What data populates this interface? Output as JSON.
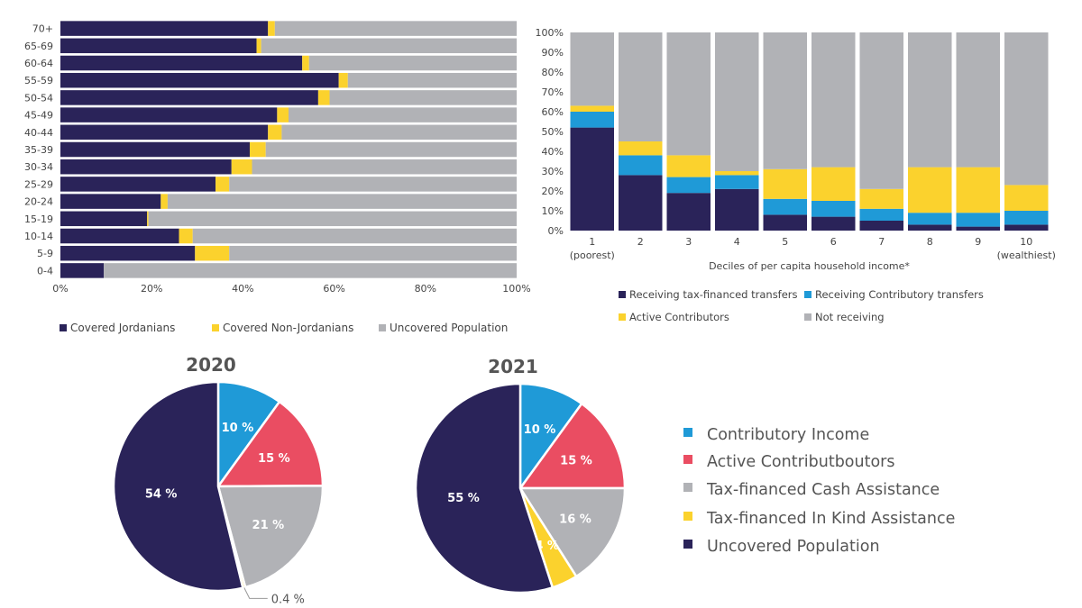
{
  "colors": {
    "navy": "#2a2359",
    "yellow": "#fbd22d",
    "gray": "#b1b2b6",
    "blue": "#1f9ad7",
    "red": "#ea4d62",
    "pieGray": "#b1b2b6"
  },
  "chart_data": [
    {
      "type": "bar",
      "orientation": "horizontal",
      "stacked": true,
      "categories": [
        "70+",
        "65-69",
        "60-64",
        "55-59",
        "50-54",
        "45-49",
        "40-44",
        "35-39",
        "30-34",
        "25-29",
        "20-24",
        "15-19",
        "10-14",
        "5-9",
        "0-4"
      ],
      "series": [
        {
          "name": "Covered Jordanians",
          "color": "navy",
          "values": [
            45.5,
            43,
            53,
            61,
            56.5,
            47.5,
            45.5,
            41.5,
            37.5,
            34,
            22,
            19,
            26,
            29.5,
            9.5
          ]
        },
        {
          "name": "Covered Non-Jordanians",
          "color": "yellow",
          "values": [
            1.5,
            1,
            1.5,
            2,
            2.5,
            2.5,
            3,
            3.5,
            4.5,
            3,
            1.5,
            0.3,
            3,
            7.5,
            0
          ]
        },
        {
          "name": "Uncovered Population",
          "color": "gray",
          "values": [
            53,
            56,
            45.5,
            37,
            41,
            50,
            51.5,
            55,
            58,
            63,
            76.5,
            80.7,
            71,
            63,
            90.5
          ]
        }
      ],
      "xticks": [
        "0%",
        "20%",
        "40%",
        "60%",
        "80%",
        "100%"
      ],
      "xlim": [
        0,
        100
      ],
      "legend": [
        "Covered Jordanians",
        "Covered Non-Jordanians",
        "Uncovered Population"
      ],
      "legend_position": "bottom"
    },
    {
      "type": "bar",
      "stacked": true,
      "categories": [
        "1",
        "2",
        "3",
        "4",
        "5",
        "6",
        "7",
        "8",
        "9",
        "10"
      ],
      "category_sublabels": {
        "0": "(poorest)",
        "9": "(wealthiest)"
      },
      "xlabel": "Deciles of per capita household income*",
      "yticks": [
        "0%",
        "10%",
        "20%",
        "30%",
        "40%",
        "50%",
        "60%",
        "70%",
        "80%",
        "90%",
        "100%"
      ],
      "ylim": [
        0,
        100
      ],
      "series": [
        {
          "name": "Receiving tax-financed transfers",
          "color": "navy",
          "values": [
            52,
            28,
            19,
            21,
            8,
            7,
            5,
            3,
            2,
            3
          ]
        },
        {
          "name": "Receiving Contributory transfers",
          "color": "blue",
          "values": [
            8,
            10,
            8,
            7,
            8,
            8,
            6,
            6,
            7,
            7
          ]
        },
        {
          "name": "Active Contributors",
          "color": "yellow",
          "values": [
            3,
            7,
            11,
            2,
            15,
            17,
            10,
            23,
            23,
            13
          ]
        },
        {
          "name": "Not receiving",
          "color": "gray",
          "values": [
            37,
            55,
            62,
            70,
            69,
            68,
            79,
            68,
            68,
            77
          ]
        }
      ],
      "legend": [
        "Receiving tax-financed transfers",
        "Receiving Contributory transfers",
        "Active Contributors",
        "Not receiving"
      ],
      "legend_position": "bottom"
    },
    {
      "type": "pie",
      "title": "2020",
      "slices": [
        {
          "name": "Contributory Income",
          "value": 10,
          "label": "10 %",
          "color": "blue"
        },
        {
          "name": "Active Contributboutors",
          "value": 15,
          "label": "15 %",
          "color": "red"
        },
        {
          "name": "Tax-financed Cash Assistance",
          "value": 21,
          "label": "21 %",
          "color": "pieGray"
        },
        {
          "name": "Tax-financed In Kind Assistance",
          "value": 0.4,
          "label": "0.4 %",
          "color": "yellow"
        },
        {
          "name": "Uncovered Population",
          "value": 54,
          "label": "54 %",
          "color": "navy"
        }
      ]
    },
    {
      "type": "pie",
      "title": "2021",
      "slices": [
        {
          "name": "Contributory Income",
          "value": 10,
          "label": "10 %",
          "color": "blue"
        },
        {
          "name": "Active Contributboutors",
          "value": 15,
          "label": "15 %",
          "color": "red"
        },
        {
          "name": "Tax-financed Cash Assistance",
          "value": 16,
          "label": "16 %",
          "color": "pieGray"
        },
        {
          "name": "Tax-financed In Kind Assistance",
          "value": 4,
          "label": "4 %",
          "color": "yellow"
        },
        {
          "name": "Uncovered Population",
          "value": 55,
          "label": "55 %",
          "color": "navy"
        }
      ]
    }
  ],
  "pie_legend": [
    {
      "label": "Contributory Income",
      "color": "blue"
    },
    {
      "label": "Active Contributboutors",
      "color": "red"
    },
    {
      "label": "Tax-financed Cash Assistance",
      "color": "pieGray"
    },
    {
      "label": "Tax-financed In Kind Assistance",
      "color": "yellow"
    },
    {
      "label": "Uncovered Population",
      "color": "navy"
    }
  ]
}
